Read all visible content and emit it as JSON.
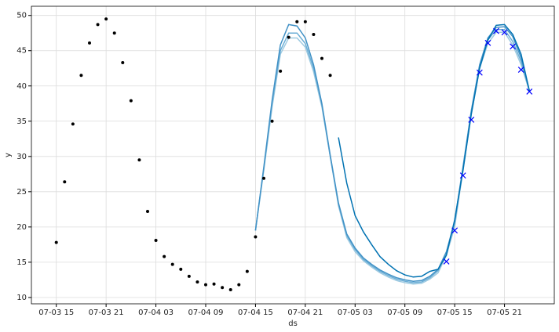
{
  "chart_data": {
    "type": "line",
    "xlabel": "ds",
    "ylabel": "y",
    "grid": true,
    "x": [
      "07-03 15",
      "07-03 16",
      "07-03 17",
      "07-03 18",
      "07-03 19",
      "07-03 20",
      "07-03 21",
      "07-03 22",
      "07-03 23",
      "07-04 00",
      "07-04 01",
      "07-04 02",
      "07-04 03",
      "07-04 04",
      "07-04 05",
      "07-04 06",
      "07-04 07",
      "07-04 08",
      "07-04 09",
      "07-04 10",
      "07-04 11",
      "07-04 12",
      "07-04 13",
      "07-04 14",
      "07-04 15",
      "07-04 16",
      "07-04 17",
      "07-04 18",
      "07-04 19",
      "07-04 20",
      "07-04 21",
      "07-04 22",
      "07-04 23",
      "07-05 00",
      "07-05 01",
      "07-05 02",
      "07-05 03",
      "07-05 04",
      "07-05 05",
      "07-05 06",
      "07-05 07",
      "07-05 08",
      "07-05 09",
      "07-05 10",
      "07-05 11",
      "07-05 12",
      "07-05 13",
      "07-05 14",
      "07-05 15",
      "07-05 16",
      "07-05 17",
      "07-05 18",
      "07-05 19",
      "07-05 20",
      "07-05 21",
      "07-05 22",
      "07-05 23",
      "07-06 00"
    ],
    "xlim": [
      "07-03 12",
      "07-06 03"
    ],
    "xticks": [
      "07-03 15",
      "07-03 21",
      "07-04 03",
      "07-04 09",
      "07-04 15",
      "07-04 21",
      "07-05 03",
      "07-05 09",
      "07-05 15",
      "07-05 21"
    ],
    "ylim": [
      9.1,
      51.3
    ],
    "yticks": [
      10,
      15,
      20,
      25,
      30,
      35,
      40,
      45,
      50
    ],
    "series": [
      {
        "color": "#9ecae1",
        "style": "line",
        "values": [
          null,
          null,
          null,
          null,
          null,
          null,
          null,
          null,
          null,
          null,
          null,
          null,
          null,
          null,
          null,
          null,
          null,
          null,
          null,
          null,
          null,
          null,
          null,
          null,
          19.5,
          28.0,
          37.0,
          44.5,
          46.8,
          46.8,
          45.5,
          42.0,
          37.0,
          30.0,
          23.0,
          18.5,
          16.5,
          15.2,
          14.3,
          13.5,
          12.9,
          12.4,
          12.1,
          11.9,
          12.0,
          12.6,
          13.5,
          16.0,
          20.0,
          28.0,
          36.0,
          42.5,
          46.0,
          47.6,
          47.6,
          45.8,
          43.0,
          39.3
        ]
      },
      {
        "color": "#6baed6",
        "style": "line",
        "values": [
          null,
          null,
          null,
          null,
          null,
          null,
          null,
          null,
          null,
          null,
          null,
          null,
          null,
          null,
          null,
          null,
          null,
          null,
          null,
          null,
          null,
          null,
          null,
          null,
          19.5,
          28.3,
          37.5,
          45.0,
          47.5,
          47.5,
          46.0,
          42.5,
          37.3,
          30.0,
          23.2,
          18.8,
          16.8,
          15.4,
          14.5,
          13.7,
          13.1,
          12.6,
          12.3,
          12.1,
          12.2,
          12.8,
          13.8,
          16.3,
          20.5,
          28.3,
          36.3,
          42.8,
          46.5,
          48.0,
          48.0,
          46.3,
          43.5,
          39.3
        ]
      },
      {
        "color": "#4292c6",
        "style": "line",
        "values": [
          null,
          null,
          null,
          null,
          null,
          null,
          null,
          null,
          null,
          null,
          null,
          null,
          null,
          null,
          null,
          null,
          null,
          null,
          null,
          null,
          null,
          null,
          null,
          null,
          19.5,
          28.5,
          38.0,
          45.8,
          48.7,
          48.5,
          46.8,
          43.0,
          37.5,
          30.2,
          23.4,
          19.0,
          17.0,
          15.6,
          14.7,
          13.9,
          13.3,
          12.8,
          12.5,
          12.3,
          12.4,
          13.0,
          14.0,
          16.5,
          20.8,
          28.5,
          36.5,
          43.0,
          46.8,
          48.3,
          48.4,
          47.0,
          44.0,
          39.3
        ]
      },
      {
        "color": "#0072b2",
        "style": "line",
        "values": [
          null,
          null,
          null,
          null,
          null,
          null,
          null,
          null,
          null,
          null,
          null,
          null,
          null,
          null,
          null,
          null,
          null,
          null,
          null,
          null,
          null,
          null,
          null,
          null,
          null,
          null,
          null,
          null,
          null,
          null,
          null,
          null,
          null,
          null,
          32.7,
          26.2,
          21.6,
          19.3,
          17.5,
          15.8,
          14.7,
          13.8,
          13.2,
          12.9,
          13.0,
          13.7,
          14.0,
          16.0,
          21.0,
          28.0,
          36.0,
          42.5,
          46.5,
          48.6,
          48.7,
          47.3,
          44.5,
          39.3
        ]
      },
      {
        "color": "#000000",
        "style": "dot",
        "values": [
          17.8,
          26.4,
          34.6,
          41.5,
          46.1,
          48.7,
          49.5,
          47.5,
          43.3,
          37.9,
          29.5,
          22.2,
          18.1,
          15.8,
          14.7,
          14.0,
          13.0,
          12.2,
          11.8,
          11.9,
          11.4,
          11.1,
          11.8,
          13.7,
          18.6,
          26.9,
          35.0,
          42.1,
          46.9,
          49.1,
          49.1,
          47.3,
          43.9,
          41.5,
          null,
          null,
          null,
          null,
          null,
          null,
          null,
          null,
          null,
          null,
          null,
          null,
          null,
          null,
          null,
          null,
          null,
          null,
          null,
          null,
          null,
          null,
          null,
          null
        ]
      },
      {
        "color": "#0000ff",
        "style": "x",
        "values": [
          null,
          null,
          null,
          null,
          null,
          null,
          null,
          null,
          null,
          null,
          null,
          null,
          null,
          null,
          null,
          null,
          null,
          null,
          null,
          null,
          null,
          null,
          null,
          null,
          null,
          null,
          null,
          null,
          null,
          null,
          null,
          null,
          null,
          null,
          null,
          null,
          null,
          null,
          null,
          null,
          null,
          null,
          null,
          null,
          null,
          null,
          null,
          15.1,
          19.5,
          27.3,
          35.2,
          41.9,
          46.1,
          47.8,
          47.6,
          45.6,
          42.3,
          39.2
        ]
      }
    ]
  }
}
